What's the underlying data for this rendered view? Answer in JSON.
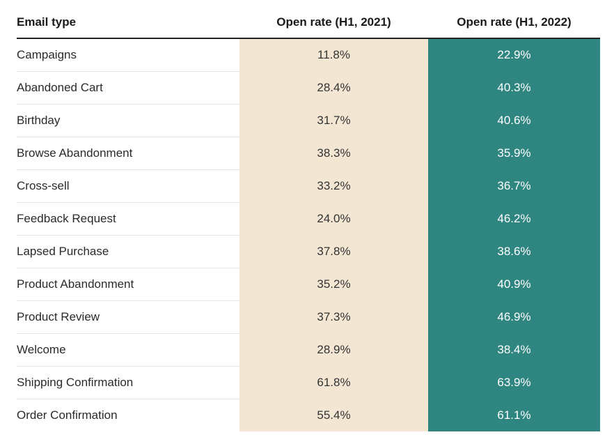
{
  "colors": {
    "col_2021_bg": "#f3e6d3",
    "col_2022_bg": "#2f8580",
    "header_rule": "#222222",
    "row_divider": "#e6e6e6"
  },
  "chart_data": {
    "type": "table",
    "columns": [
      "Email type",
      "Open rate (H1, 2021)",
      "Open rate (H1, 2022)"
    ],
    "rows": [
      [
        "Campaigns",
        "11.8%",
        "22.9%"
      ],
      [
        "Abandoned Cart",
        "28.4%",
        "40.3%"
      ],
      [
        "Birthday",
        "31.7%",
        "40.6%"
      ],
      [
        "Browse Abandonment",
        "38.3%",
        "35.9%"
      ],
      [
        "Cross-sell",
        "33.2%",
        "36.7%"
      ],
      [
        "Feedback Request",
        "24.0%",
        "46.2%"
      ],
      [
        "Lapsed Purchase",
        "37.8%",
        "38.6%"
      ],
      [
        "Product Abandonment",
        "35.2%",
        "40.9%"
      ],
      [
        "Product Review",
        "37.3%",
        "46.9%"
      ],
      [
        "Welcome",
        "28.9%",
        "38.4%"
      ],
      [
        "Shipping Confirmation",
        "61.8%",
        "63.9%"
      ],
      [
        "Order Confirmation",
        "55.4%",
        "61.1%"
      ]
    ]
  }
}
